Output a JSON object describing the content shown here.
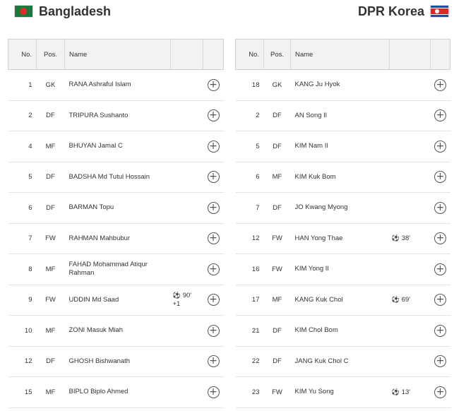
{
  "home": {
    "name": "Bangladesh",
    "columns": {
      "no": "No.",
      "pos": "Pos.",
      "name": "Name"
    },
    "players": [
      {
        "no": "1",
        "pos": "GK",
        "name": "RANA Ashraful Islam",
        "event_icon": "",
        "event_time": "",
        "event_extra": ""
      },
      {
        "no": "2",
        "pos": "DF",
        "name": "TRIPURA Sushanto",
        "event_icon": "",
        "event_time": "",
        "event_extra": ""
      },
      {
        "no": "4",
        "pos": "MF",
        "name": "BHUYAN Jamal C",
        "event_icon": "",
        "event_time": "",
        "event_extra": ""
      },
      {
        "no": "5",
        "pos": "DF",
        "name": "BADSHA Md Tutul Hossain",
        "event_icon": "",
        "event_time": "",
        "event_extra": ""
      },
      {
        "no": "6",
        "pos": "DF",
        "name": "BARMAN Topu",
        "event_icon": "",
        "event_time": "",
        "event_extra": ""
      },
      {
        "no": "7",
        "pos": "FW",
        "name": "RAHMAN Mahbubur",
        "event_icon": "",
        "event_time": "",
        "event_extra": ""
      },
      {
        "no": "8",
        "pos": "MF",
        "name": "FAHAD Mohammad Atiqur Rahman",
        "event_icon": "",
        "event_time": "",
        "event_extra": ""
      },
      {
        "no": "9",
        "pos": "FW",
        "name": "UDDIN Md Saad",
        "event_icon": "⚽",
        "event_time": "90'",
        "event_extra": "+1"
      },
      {
        "no": "10",
        "pos": "MF",
        "name": "ZONI Masuk Miah",
        "event_icon": "",
        "event_time": "",
        "event_extra": ""
      },
      {
        "no": "12",
        "pos": "DF",
        "name": "GHOSH Bishwanath",
        "event_icon": "",
        "event_time": "",
        "event_extra": ""
      },
      {
        "no": "15",
        "pos": "MF",
        "name": "BIPLO Biplo Ahmed",
        "event_icon": "",
        "event_time": "",
        "event_extra": ""
      }
    ]
  },
  "away": {
    "name": "DPR Korea",
    "columns": {
      "no": "No.",
      "pos": "Pos.",
      "name": "Name"
    },
    "players": [
      {
        "no": "18",
        "pos": "GK",
        "name": "KANG Ju Hyok",
        "event_icon": "",
        "event_time": "",
        "event_extra": ""
      },
      {
        "no": "2",
        "pos": "DF",
        "name": "AN Song Il",
        "event_icon": "",
        "event_time": "",
        "event_extra": ""
      },
      {
        "no": "5",
        "pos": "DF",
        "name": "KIM Nam Il",
        "event_icon": "",
        "event_time": "",
        "event_extra": ""
      },
      {
        "no": "6",
        "pos": "MF",
        "name": "KIM Kuk Bom",
        "event_icon": "",
        "event_time": "",
        "event_extra": ""
      },
      {
        "no": "7",
        "pos": "DF",
        "name": "JO Kwang Myong",
        "event_icon": "",
        "event_time": "",
        "event_extra": ""
      },
      {
        "no": "12",
        "pos": "FW",
        "name": "HAN Yong Thae",
        "event_icon": "⚽",
        "event_time": "38'",
        "event_extra": ""
      },
      {
        "no": "16",
        "pos": "FW",
        "name": "KIM Yong Il",
        "event_icon": "",
        "event_time": "",
        "event_extra": ""
      },
      {
        "no": "17",
        "pos": "MF",
        "name": "KANG Kuk Chol",
        "event_icon": "⚽",
        "event_time": "69'",
        "event_extra": ""
      },
      {
        "no": "21",
        "pos": "DF",
        "name": "KIM Chol Bom",
        "event_icon": "",
        "event_time": "",
        "event_extra": ""
      },
      {
        "no": "22",
        "pos": "DF",
        "name": "JANG Kuk Chol C",
        "event_icon": "",
        "event_time": "",
        "event_extra": ""
      },
      {
        "no": "23",
        "pos": "FW",
        "name": "KIM Yu Song",
        "event_icon": "⚽",
        "event_time": "13'",
        "event_extra": ""
      }
    ]
  },
  "icons": {
    "add": "plus-circle-icon",
    "goal": "soccer-ball-icon"
  },
  "add_symbol": "+"
}
